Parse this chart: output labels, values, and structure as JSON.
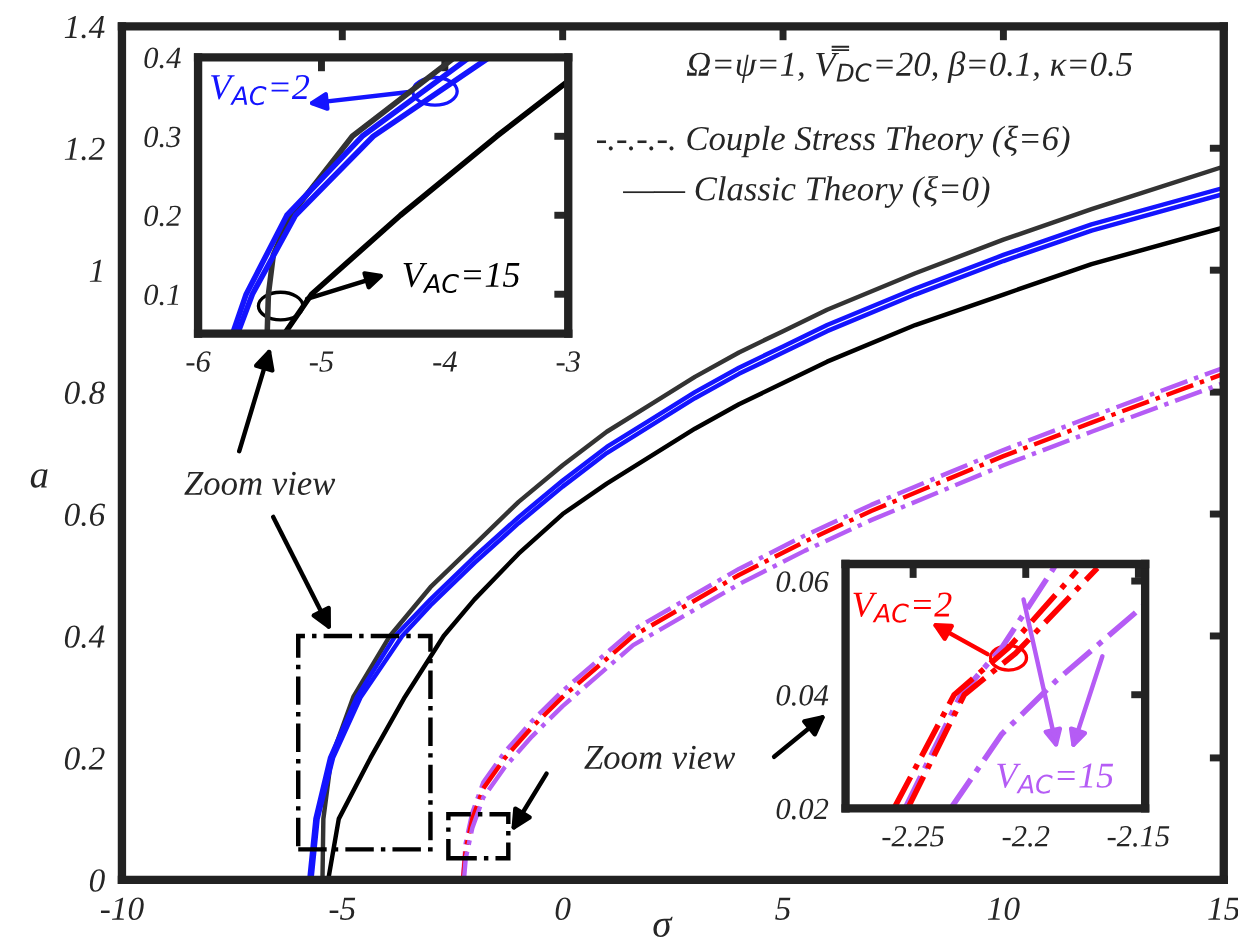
{
  "chart_data": [
    {
      "type": "line",
      "xlabel": "σ",
      "ylabel": "a",
      "xlim": [
        -10,
        15
      ],
      "ylim": [
        0,
        1.4
      ],
      "xticks": [
        -10,
        -5,
        0,
        5,
        10,
        15
      ],
      "yticks": [
        0,
        0.2,
        0.4,
        0.6,
        0.8,
        1,
        1.2,
        1.4
      ],
      "grid": false,
      "annotations": [
        "Ω=ψ=1, V̿$_{DC}$=20, β=0.1, κ=0.5",
        "-.-.-.-. Couple Stress Theory (ξ=6)",
        "—— Classic Theory (ξ=0)",
        "Zoom view",
        "Zoom view"
      ],
      "series": [
        {
          "color": "#333333",
          "line_style": "solid",
          "x": [
            -5.45,
            -5.43,
            -5.25,
            -4.75,
            -3.92,
            -3,
            -2,
            -1,
            0,
            1,
            2,
            3,
            4,
            5,
            6,
            8,
            10,
            12,
            15
          ],
          "values": [
            0,
            0.1,
            0.2,
            0.3,
            0.4,
            0.48,
            0.55,
            0.62,
            0.68,
            0.735,
            0.78,
            0.825,
            0.865,
            0.9,
            0.935,
            0.995,
            1.05,
            1.1,
            1.17
          ]
        },
        {
          "color": "#1414ff",
          "line_style": "solid",
          "x": [
            -5.75,
            -5.61,
            -5.28,
            -4.67,
            -3.8,
            -3,
            -2,
            -1,
            0,
            1,
            2,
            3,
            4,
            5,
            6,
            8,
            10,
            12,
            15
          ],
          "values": [
            0,
            0.1,
            0.2,
            0.3,
            0.4,
            0.46,
            0.53,
            0.595,
            0.655,
            0.71,
            0.755,
            0.8,
            0.84,
            0.875,
            0.91,
            0.97,
            1.025,
            1.075,
            1.135
          ]
        },
        {
          "color": "#1414ff",
          "line_style": "solid",
          "x": [
            -5.7,
            -5.56,
            -5.21,
            -4.58,
            -3.64,
            -3,
            -2,
            -1,
            0,
            1,
            2,
            3,
            4,
            5,
            6,
            8,
            10,
            12,
            15
          ],
          "values": [
            0,
            0.1,
            0.2,
            0.3,
            0.4,
            0.45,
            0.52,
            0.585,
            0.645,
            0.7,
            0.745,
            0.79,
            0.83,
            0.865,
            0.9,
            0.96,
            1.015,
            1.065,
            1.125
          ]
        },
        {
          "color": "#000000",
          "line_style": "solid",
          "x": [
            -5.32,
            -5.08,
            -4.36,
            -3.58,
            -2.7,
            -2,
            -1,
            0,
            1,
            2,
            3,
            4,
            5,
            6,
            8,
            10,
            12,
            15
          ],
          "values": [
            0,
            0.1,
            0.2,
            0.3,
            0.4,
            0.46,
            0.535,
            0.6,
            0.65,
            0.695,
            0.74,
            0.78,
            0.815,
            0.85,
            0.91,
            0.96,
            1.01,
            1.07
          ]
        },
        {
          "color": "#b55cf5",
          "line_style": "dashdot",
          "x": [
            -2.265,
            -2.2,
            -2.05,
            -1.8,
            -1.31,
            -0.7,
            0,
            0.8,
            1.6,
            2.8,
            4,
            5.5,
            7,
            8.5,
            10,
            12,
            15
          ],
          "values": [
            0,
            0.06,
            0.11,
            0.16,
            0.21,
            0.26,
            0.31,
            0.36,
            0.41,
            0.46,
            0.51,
            0.565,
            0.615,
            0.66,
            0.705,
            0.76,
            0.84
          ]
        },
        {
          "color": "#ff0000",
          "line_style": "dashdot",
          "x": [
            -2.26,
            -2.2,
            -2.05,
            -1.8,
            -1.31,
            -0.7,
            0,
            0.8,
            1.6,
            2.8,
            4,
            5.5,
            7,
            8.5,
            10,
            12,
            15
          ],
          "values": [
            0,
            0.05,
            0.1,
            0.15,
            0.2,
            0.25,
            0.3,
            0.35,
            0.4,
            0.45,
            0.5,
            0.555,
            0.605,
            0.65,
            0.695,
            0.75,
            0.83
          ]
        },
        {
          "color": "#b55cf5",
          "line_style": "dashdot",
          "x": [
            -2.24,
            -2.2,
            -2.05,
            -1.8,
            -1.31,
            -0.7,
            0,
            0.8,
            1.6,
            2.8,
            4,
            5.5,
            7,
            8.5,
            10,
            12,
            15
          ],
          "values": [
            0,
            0.035,
            0.085,
            0.135,
            0.185,
            0.235,
            0.285,
            0.335,
            0.385,
            0.435,
            0.485,
            0.54,
            0.59,
            0.635,
            0.68,
            0.735,
            0.815
          ]
        }
      ]
    },
    {
      "type": "line",
      "xlim": [
        -6,
        -3
      ],
      "ylim": [
        0.05,
        0.4
      ],
      "xticks": [
        -6,
        -5,
        -4,
        -3
      ],
      "yticks": [
        0.1,
        0.2,
        0.3,
        0.4
      ],
      "grid": false,
      "annotations": [
        "V$_{AC}$=2",
        "V$_{AC}$=15"
      ],
      "series": [
        {
          "color": "#333333",
          "line_style": "solid",
          "x": [
            -5.44,
            -5.43,
            -5.39,
            -5.25,
            -4.75,
            -3.92
          ],
          "values": [
            0.05,
            0.1,
            0.15,
            0.2,
            0.3,
            0.4
          ]
        },
        {
          "color": "#1414ff",
          "line_style": "solid",
          "x": [
            -5.72,
            -5.61,
            -5.28,
            -4.67,
            -3.8
          ],
          "values": [
            0.05,
            0.1,
            0.2,
            0.3,
            0.4
          ]
        },
        {
          "color": "#1414ff",
          "line_style": "solid",
          "x": [
            -5.68,
            -5.56,
            -5.21,
            -4.58,
            -3.64
          ],
          "values": [
            0.05,
            0.1,
            0.2,
            0.3,
            0.4
          ]
        },
        {
          "color": "#000000",
          "line_style": "solid",
          "x": [
            -5.3,
            -5.08,
            -4.36,
            -3.58,
            -3.0
          ],
          "values": [
            0.05,
            0.1,
            0.2,
            0.3,
            0.37
          ]
        }
      ]
    },
    {
      "type": "line",
      "xlim": [
        -2.28,
        -2.147
      ],
      "ylim": [
        0.02,
        0.063
      ],
      "xticks": [
        -2.25,
        -2.2,
        -2.15
      ],
      "yticks": [
        0.02,
        0.04,
        0.06
      ],
      "grid": false,
      "annotations": [
        "V$_{AC}$=2",
        "V$_{AC}$=15"
      ],
      "series": [
        {
          "color": "#b55cf5",
          "line_style": "dashdot",
          "x": [
            -2.2536,
            -2.2288,
            -2.2106,
            -2.1864
          ],
          "values": [
            0.02,
            0.04,
            0.0483,
            0.063
          ]
        },
        {
          "color": "#ff0000",
          "line_style": "dashdot",
          "x": [
            -2.2585,
            -2.2318,
            -2.2076,
            -2.1773
          ],
          "values": [
            0.02,
            0.04,
            0.0483,
            0.0618
          ]
        },
        {
          "color": "#ff0000",
          "line_style": "dashdot",
          "x": [
            -2.2524,
            -2.2273,
            -2.2045,
            -2.1682
          ],
          "values": [
            0.02,
            0.04,
            0.0473,
            0.0623
          ]
        },
        {
          "color": "#b55cf5",
          "line_style": "dashdot",
          "x": [
            -2.2333,
            -2.2106,
            -2.1864,
            -2.147
          ],
          "values": [
            0.02,
            0.0331,
            0.0425,
            0.0559
          ]
        }
      ]
    }
  ]
}
